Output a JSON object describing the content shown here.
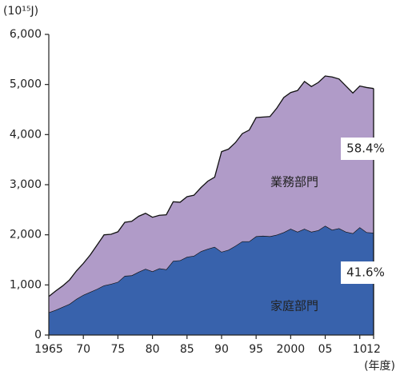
{
  "chart_data": {
    "type": "stacked-area",
    "unit_label": "(10¹⁵J)",
    "x_label": "(年度)",
    "x": [
      1965,
      1966,
      1967,
      1968,
      1969,
      1970,
      1971,
      1972,
      1973,
      1974,
      1975,
      1976,
      1977,
      1978,
      1979,
      1980,
      1981,
      1982,
      1983,
      1984,
      1985,
      1986,
      1987,
      1988,
      1989,
      1990,
      1991,
      1992,
      1993,
      1994,
      1995,
      1996,
      1997,
      1998,
      1999,
      2000,
      2001,
      2002,
      2003,
      2004,
      2005,
      2006,
      2007,
      2008,
      2009,
      2010,
      2011,
      2012
    ],
    "series": [
      {
        "name": "家庭部門",
        "color": "#3862ac",
        "values": [
          450,
          500,
          560,
          620,
          720,
          800,
          860,
          920,
          990,
          1020,
          1060,
          1180,
          1190,
          1260,
          1320,
          1270,
          1330,
          1310,
          1480,
          1490,
          1560,
          1580,
          1670,
          1720,
          1760,
          1660,
          1700,
          1780,
          1870,
          1870,
          1970,
          1980,
          1970,
          2000,
          2050,
          2120,
          2060,
          2120,
          2060,
          2090,
          2180,
          2100,
          2130,
          2060,
          2030,
          2150,
          2050,
          2040
        ]
      },
      {
        "name": "業務部門",
        "color": "#b09bc8",
        "values": [
          320,
          380,
          420,
          480,
          560,
          630,
          740,
          880,
          1010,
          990,
          1000,
          1070,
          1080,
          1110,
          1110,
          1080,
          1060,
          1090,
          1180,
          1160,
          1200,
          1210,
          1270,
          1350,
          1390,
          2000,
          2010,
          2060,
          2150,
          2220,
          2370,
          2370,
          2390,
          2530,
          2690,
          2720,
          2820,
          2940,
          2900,
          2950,
          2990,
          3050,
          2980,
          2910,
          2800,
          2820,
          2890,
          2880
        ]
      }
    ],
    "annotations": [
      "58.4%",
      "41.6%"
    ],
    "xlim": [
      1965,
      2012
    ],
    "xticks": [
      1965,
      {
        "value": 1970,
        "label": "70"
      },
      {
        "value": 1975,
        "label": "75"
      },
      {
        "value": 1980,
        "label": "80"
      },
      {
        "value": 1985,
        "label": "85"
      },
      {
        "value": 1990,
        "label": "90"
      },
      {
        "value": 1995,
        "label": "95"
      },
      2000,
      {
        "value": 2005,
        "label": "05"
      },
      {
        "value": 2010,
        "label": "10"
      },
      {
        "value": 2012,
        "label": "12"
      }
    ],
    "ylim": [
      0,
      6000
    ],
    "yticks": [
      0,
      {
        "value": 1000,
        "label": "1,000"
      },
      {
        "value": 2000,
        "label": "2,000"
      },
      {
        "value": 3000,
        "label": "3,000"
      },
      {
        "value": 4000,
        "label": "4,000"
      },
      {
        "value": 5000,
        "label": "5,000"
      },
      {
        "value": 6000,
        "label": "6,000"
      }
    ],
    "grid": false
  }
}
